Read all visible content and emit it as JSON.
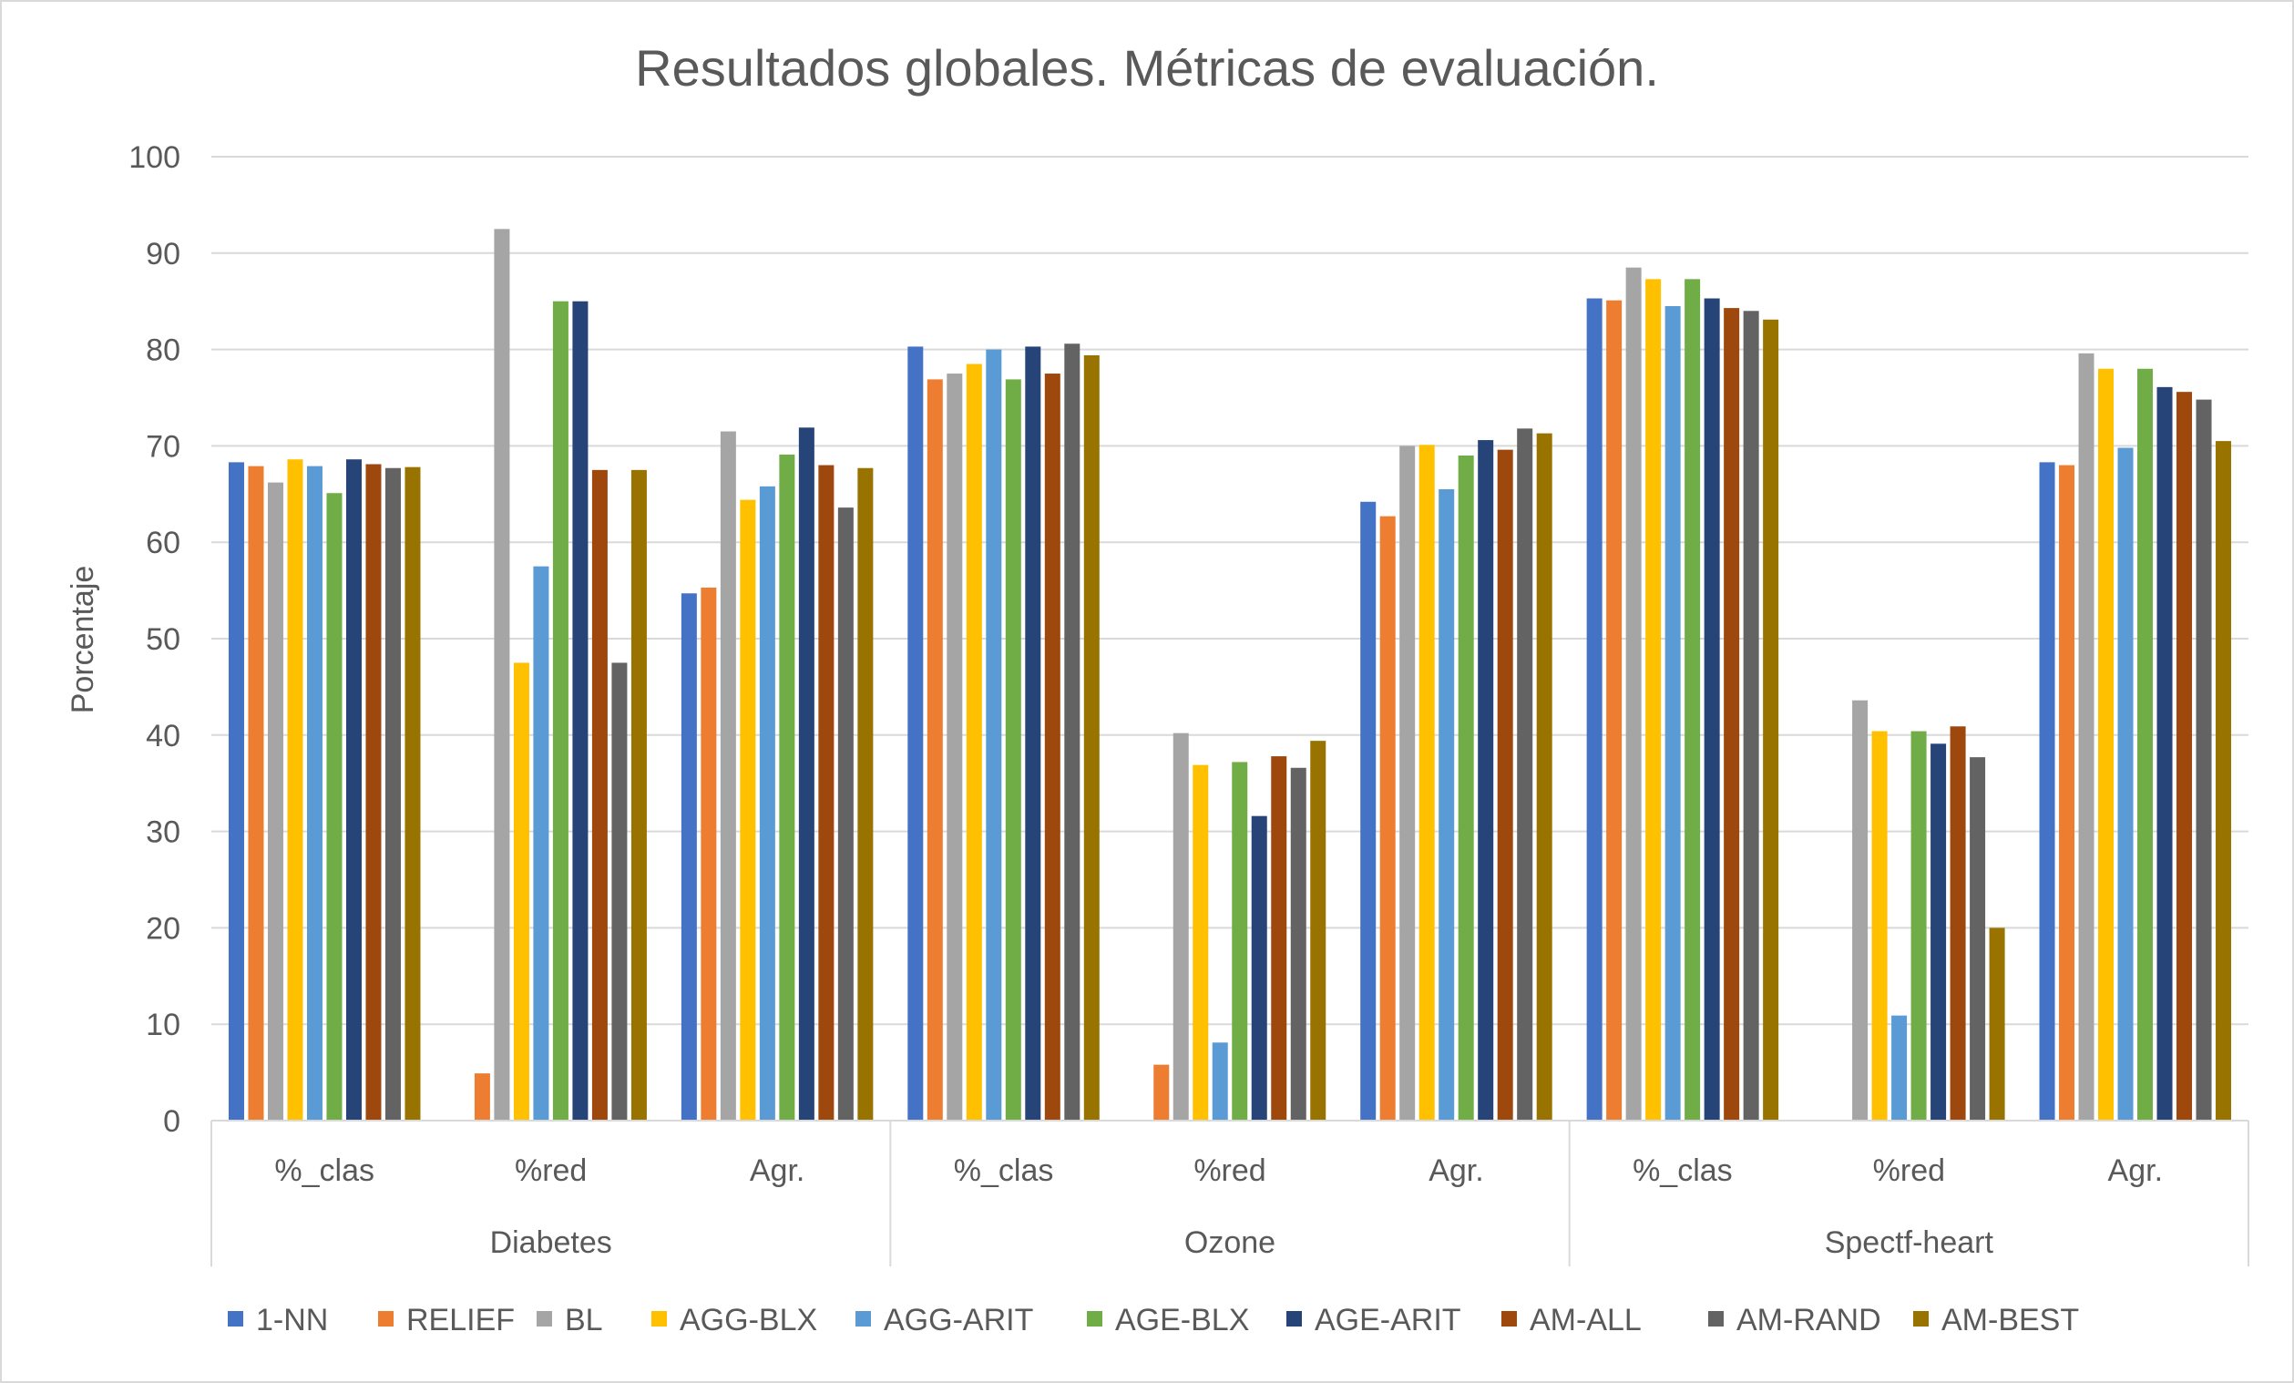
{
  "chart_data": {
    "type": "bar",
    "title": "Resultados globales. Métricas de evaluación.",
    "ylabel": "Porcentaje",
    "xlabel": "",
    "ylim": [
      0,
      100
    ],
    "yticks": [
      0,
      10,
      20,
      30,
      40,
      50,
      60,
      70,
      80,
      90,
      100
    ],
    "grid": true,
    "legend_position": "bottom",
    "groups": [
      {
        "label": "Diabetes",
        "categories": [
          "%_clas",
          "%red",
          "Agr."
        ]
      },
      {
        "label": "Ozone",
        "categories": [
          "%_clas",
          "%red",
          "Agr."
        ]
      },
      {
        "label": "Spectf-heart",
        "categories": [
          "%_clas",
          "%red",
          "Agr."
        ]
      }
    ],
    "categories": [
      "%_clas",
      "%red",
      "Agr.",
      "%_clas",
      "%red",
      "Agr.",
      "%_clas",
      "%red",
      "Agr."
    ],
    "series": [
      {
        "name": "1-NN",
        "color": "#4472c4",
        "values": [
          68.3,
          0,
          54.7,
          80.3,
          0,
          64.2,
          85.3,
          0,
          68.3
        ]
      },
      {
        "name": "RELIEF",
        "color": "#ed7d31",
        "values": [
          67.9,
          4.9,
          55.3,
          76.9,
          5.8,
          62.7,
          85.1,
          0,
          68.0
        ]
      },
      {
        "name": "BL",
        "color": "#a5a5a5",
        "values": [
          66.2,
          92.5,
          71.5,
          77.5,
          40.2,
          70.0,
          88.5,
          43.6,
          79.6
        ]
      },
      {
        "name": "AGG-BLX",
        "color": "#ffc000",
        "values": [
          68.6,
          47.5,
          64.4,
          78.5,
          36.9,
          70.1,
          87.3,
          40.4,
          78.0
        ]
      },
      {
        "name": "AGG-ARIT",
        "color": "#5b9bd5",
        "values": [
          67.9,
          57.5,
          65.8,
          80.0,
          8.1,
          65.5,
          84.5,
          10.9,
          69.8
        ]
      },
      {
        "name": "AGE-BLX",
        "color": "#70ad47",
        "values": [
          65.1,
          85.0,
          69.1,
          76.9,
          37.2,
          69.0,
          87.3,
          40.4,
          78.0
        ]
      },
      {
        "name": "AGE-ARIT",
        "color": "#264478",
        "values": [
          68.6,
          85.0,
          71.9,
          80.3,
          31.6,
          70.6,
          85.3,
          39.1,
          76.1
        ]
      },
      {
        "name": "AM-ALL",
        "color": "#9e480e",
        "values": [
          68.1,
          67.5,
          68.0,
          77.5,
          37.8,
          69.6,
          84.3,
          40.9,
          75.6
        ]
      },
      {
        "name": "AM-RAND",
        "color": "#636363",
        "values": [
          67.7,
          47.5,
          63.6,
          80.6,
          36.6,
          71.8,
          84.0,
          37.7,
          74.8
        ]
      },
      {
        "name": "AM-BEST",
        "color": "#997300",
        "values": [
          67.8,
          67.5,
          67.7,
          79.4,
          39.4,
          71.3,
          83.1,
          20.0,
          70.5
        ]
      }
    ]
  }
}
